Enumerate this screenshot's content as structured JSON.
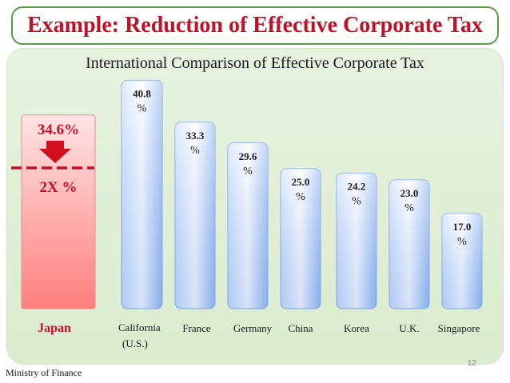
{
  "slide": {
    "title": "Example: Reduction of Effective Corporate Tax",
    "page_number": "12",
    "footer": "Ministry of Finance"
  },
  "chart_data": {
    "type": "bar",
    "title": "International Comparison of Effective Corporate Tax",
    "xlabel": "",
    "ylabel": "",
    "ylim": [
      0,
      45
    ],
    "grid": false,
    "categories": [
      "Japan",
      "California (U.S.)",
      "France",
      "Germany",
      "China",
      "Korea",
      "U.K.",
      "Singapore"
    ],
    "values": [
      34.6,
      40.8,
      33.3,
      29.6,
      25.0,
      24.2,
      23.0,
      17.0
    ],
    "data_labels": [
      "34.6%",
      "40.8 %",
      "33.3 %",
      "29.6 %",
      "25.0 %",
      "24.2 %",
      "23.0 %",
      "17.0 %"
    ],
    "annotations": {
      "japan_target_label": "2X %",
      "japan_arrow": "down-arrow"
    },
    "colors": {
      "japan_bar": "#ff9a9a",
      "other_bars": "#8fb4ee",
      "japan_text": "#c0102a",
      "value_text": "#1a1a1a",
      "dashed_line": "#c0102a",
      "arrow": "#d01020"
    }
  }
}
